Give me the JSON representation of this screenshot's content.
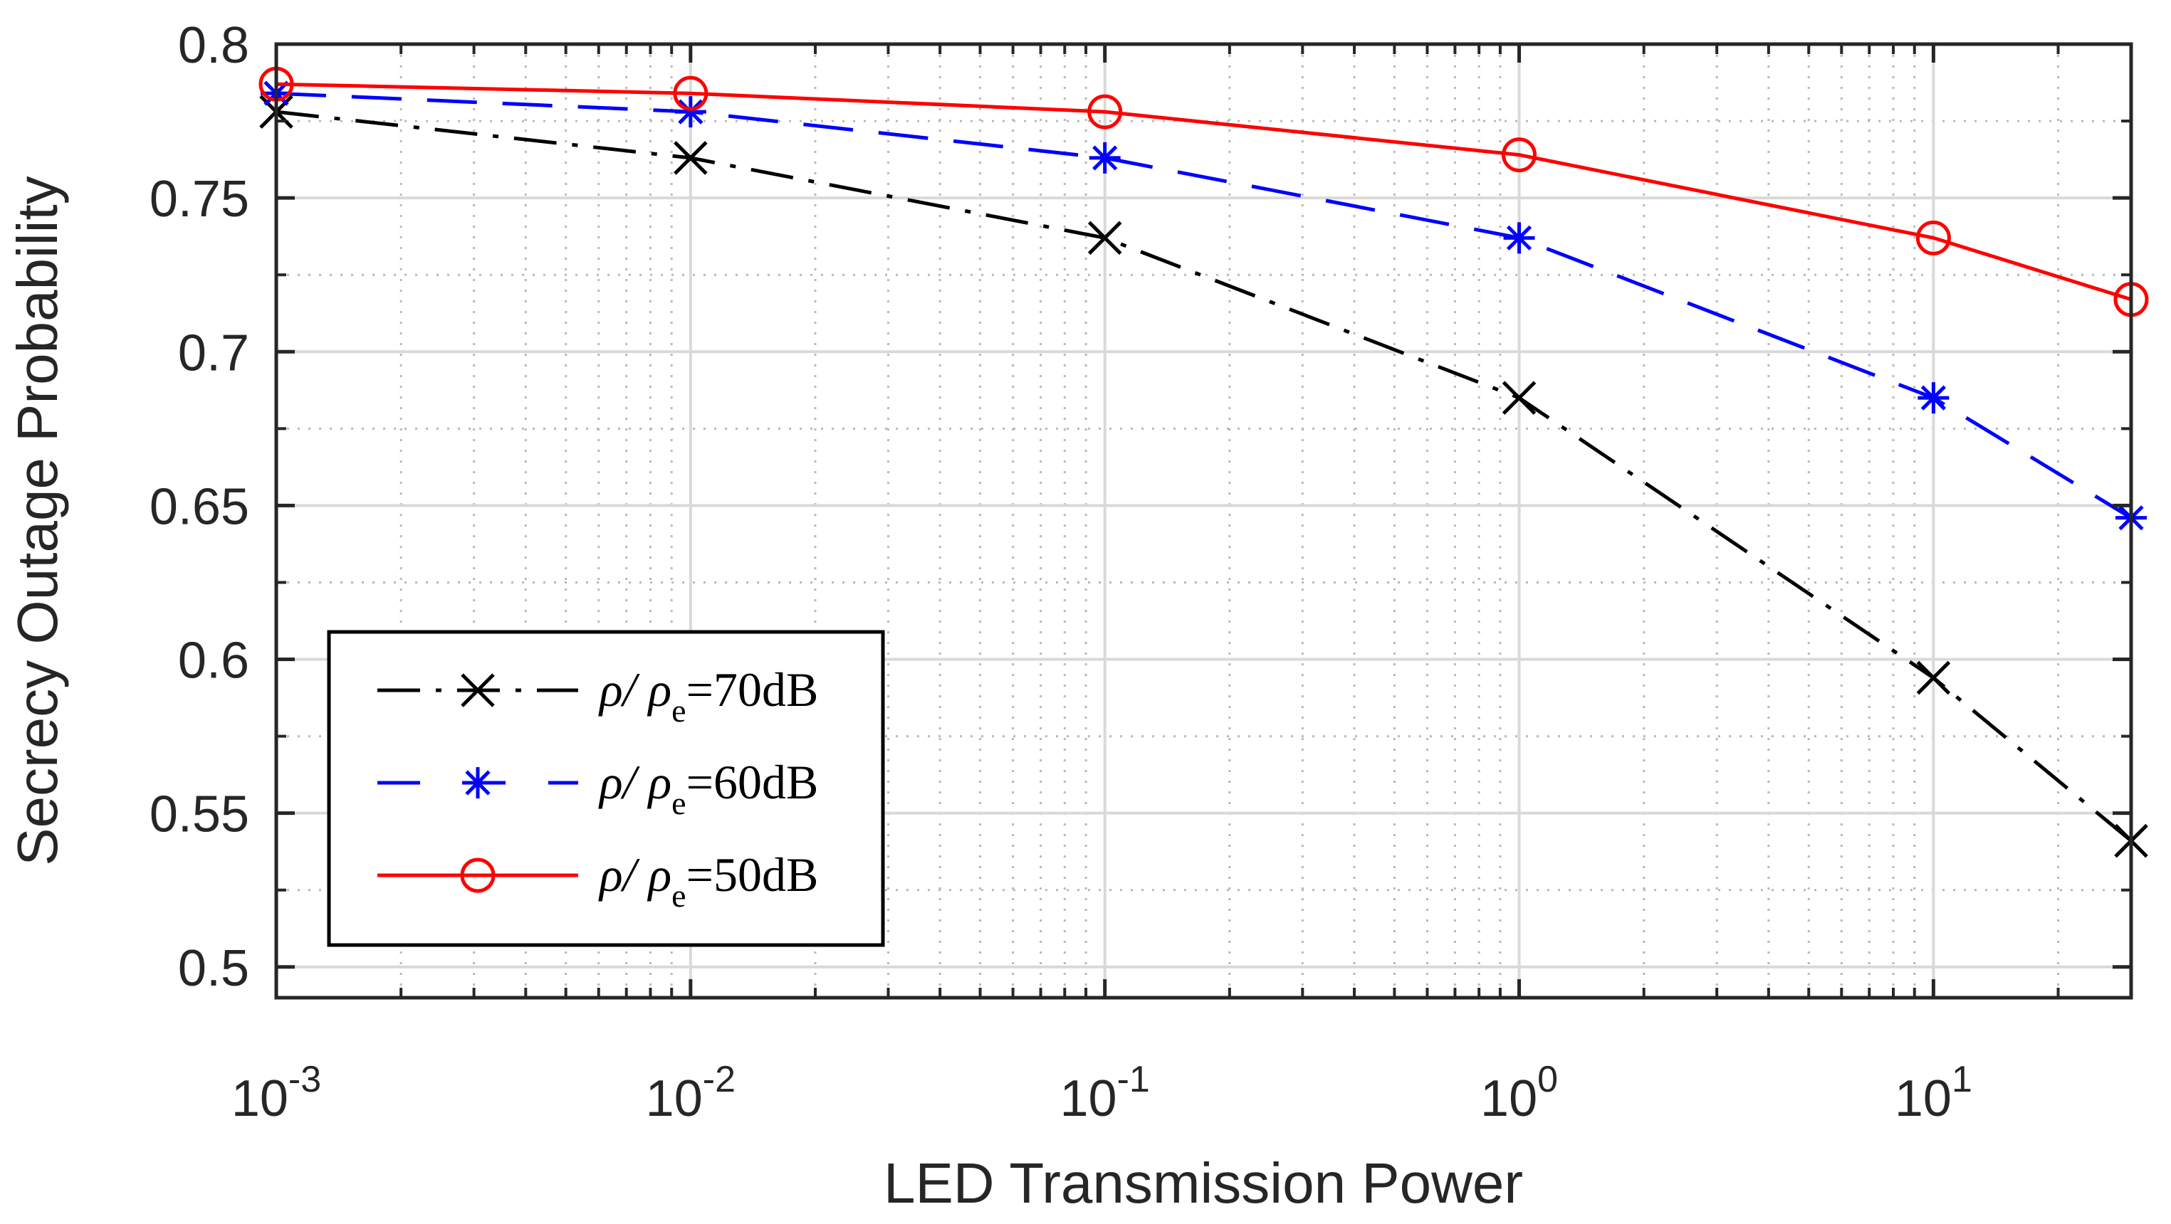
{
  "chart_data": {
    "type": "line",
    "xscale": "log",
    "x": [
      0.001,
      0.01,
      0.1,
      1,
      10,
      30
    ],
    "xlim": [
      0.001,
      30
    ],
    "ylim": [
      0.49,
      0.8
    ],
    "xticks": [
      {
        "value": 0.001,
        "base": "10",
        "exp": "-3"
      },
      {
        "value": 0.01,
        "base": "10",
        "exp": "-2"
      },
      {
        "value": 0.1,
        "base": "10",
        "exp": "-1"
      },
      {
        "value": 1,
        "base": "10",
        "exp": "0"
      },
      {
        "value": 10,
        "base": "10",
        "exp": "1"
      }
    ],
    "yticks": [
      {
        "value": 0.5,
        "label": "0.5"
      },
      {
        "value": 0.55,
        "label": "0.55"
      },
      {
        "value": 0.6,
        "label": "0.6"
      },
      {
        "value": 0.65,
        "label": "0.65"
      },
      {
        "value": 0.7,
        "label": "0.7"
      },
      {
        "value": 0.75,
        "label": "0.75"
      },
      {
        "value": 0.8,
        "label": "0.8"
      }
    ],
    "xlabel": "LED Transmission Power",
    "ylabel": "Secrecy Outage Probability",
    "grid": true,
    "legend_position": "bottom-left",
    "series": [
      {
        "name": "ρ/ρe=70dB",
        "legend_main": "ρ/ ρ",
        "legend_sub": "e",
        "legend_tail": "=70dB",
        "color": "#000000",
        "line_style": "dash-dot",
        "marker": "x",
        "values": [
          0.778,
          0.763,
          0.737,
          0.685,
          0.594,
          0.541
        ]
      },
      {
        "name": "ρ/ρe=60dB",
        "legend_main": "ρ/ ρ",
        "legend_sub": "e",
        "legend_tail": "=60dB",
        "color": "#0000ff",
        "line_style": "dashed",
        "marker": "asterisk",
        "values": [
          0.784,
          0.778,
          0.763,
          0.737,
          0.685,
          0.646
        ]
      },
      {
        "name": "ρ/ρe=50dB",
        "legend_main": "ρ/ ρ",
        "legend_sub": "e",
        "legend_tail": "=50dB",
        "color": "#ff0000",
        "line_style": "solid",
        "marker": "circle",
        "values": [
          0.787,
          0.784,
          0.778,
          0.764,
          0.737,
          0.717
        ]
      }
    ]
  }
}
